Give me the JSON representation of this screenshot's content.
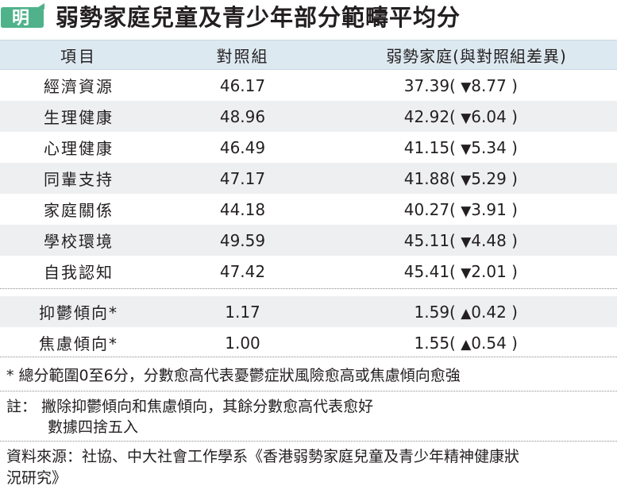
{
  "header": {
    "logo_text": "明",
    "title": "弱勢家庭兒童及青少年部分範疇平均分"
  },
  "colors": {
    "accent_green": "#4fb28a",
    "header_row_bg": "#dde9f1",
    "shade_row_bg": "#eeeff1"
  },
  "chart_data": {
    "type": "table",
    "title": "弱勢家庭兒童及青少年部分範疇平均分",
    "columns": [
      "項目",
      "對照組",
      "弱勢家庭(與對照組差異)"
    ],
    "rows": [
      {
        "item": "經濟資源",
        "control": "46.17",
        "disadvantaged": "37.39",
        "arrow": "▼",
        "diff": "8.77"
      },
      {
        "item": "生理健康",
        "control": "48.96",
        "disadvantaged": "42.92",
        "arrow": "▼",
        "diff": "6.04"
      },
      {
        "item": "心理健康",
        "control": "46.49",
        "disadvantaged": "41.15",
        "arrow": "▼",
        "diff": "5.34"
      },
      {
        "item": "同輩支持",
        "control": "47.17",
        "disadvantaged": "41.88",
        "arrow": "▼",
        "diff": "5.29"
      },
      {
        "item": "家庭關係",
        "control": "44.18",
        "disadvantaged": "40.27",
        "arrow": "▼",
        "diff": "3.91"
      },
      {
        "item": "學校環境",
        "control": "49.59",
        "disadvantaged": "45.11",
        "arrow": "▼",
        "diff": "4.48"
      },
      {
        "item": "自我認知",
        "control": "47.42",
        "disadvantaged": "45.41",
        "arrow": "▼",
        "diff": "2.01"
      }
    ],
    "rows_extra": [
      {
        "item": "抑鬱傾向*",
        "control": "1.17",
        "disadvantaged": "1.59",
        "arrow": "▲",
        "diff": "0.42"
      },
      {
        "item": "焦慮傾向*",
        "control": "1.00",
        "disadvantaged": "1.55",
        "arrow": "▲",
        "diff": "0.54"
      }
    ]
  },
  "footnotes": {
    "scale_note": "* 總分範圍0至6分，分數愈高代表憂鬱症狀風險愈高或焦慮傾向愈強",
    "note_label": "註：",
    "note_line1": "撇除抑鬱傾向和焦慮傾向，其餘分數愈高代表愈好",
    "note_line2": "數據四捨五入",
    "source_line1": "資料來源：社協、中大社會工作學系《香港弱勢家庭兒童及青少年精神健康狀",
    "source_line2": "況研究》"
  }
}
